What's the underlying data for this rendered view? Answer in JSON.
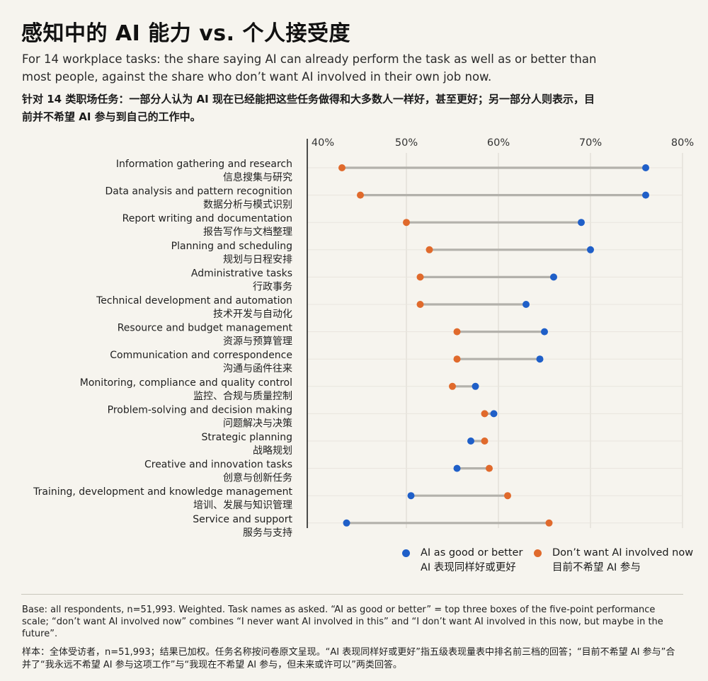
{
  "title": "感知中的 AI 能力 vs. 个人接受度",
  "subtitle": "For 14 workplace tasks: the share saying AI can already perform the task as well as or better than most people, against the share who don’t want AI involved in their own job now.",
  "subtitle_zh": "针对 14 类职场任务：一部分人认为 AI 现在已经能把这些任务做得和大多数人一样好，甚至更好；另一部分人则表示，目前并不希望 AI 参与到自己的工作中。",
  "legend": {
    "good": {
      "label_en": "AI as good or better",
      "label_zh": "AI 表现同样好或更好"
    },
    "dontwant": {
      "label_en": "Don’t want AI involved now",
      "label_zh": "目前不希望 AI 参与"
    }
  },
  "footnote_en": "Base: all respondents, n=51,993. Weighted. Task names as asked. “AI as good or better” = top three boxes of the five-point performance scale; “don’t want AI involved now” combines “I never want AI involved in this” and “I don’t want AI involved in this now, but maybe in the future”.",
  "footnote_zh": "样本：全体受访者，n=51,993；结果已加权。任务名称按问卷原文呈现。“AI 表现同样好或更好”指五级表现量表中排名前三档的回答；“目前不希望 AI 参与”合并了“我永远不希望 AI 参与这项工作”与“我现在不希望 AI 参与，但未来或许可以”两类回答。",
  "colors": {
    "good": "#1f5fc8",
    "dontwant": "#e06a2c",
    "connector": "#b3b1ab",
    "grid": "#d9d6cd",
    "axis": "#222222"
  },
  "chart_data": {
    "type": "dot-range",
    "xlim": [
      40,
      80
    ],
    "x_ticks": [
      40,
      50,
      60,
      70,
      80
    ],
    "x_tick_labels": [
      "40%",
      "50%",
      "60%",
      "70%",
      "80%"
    ],
    "categories": [
      {
        "en": "Information gathering and research",
        "zh": "信息搜集与研究"
      },
      {
        "en": "Data analysis and pattern recognition",
        "zh": "数据分析与模式识别"
      },
      {
        "en": "Report writing and documentation",
        "zh": "报告写作与文档整理"
      },
      {
        "en": "Planning and scheduling",
        "zh": "规划与日程安排"
      },
      {
        "en": "Administrative tasks",
        "zh": "行政事务"
      },
      {
        "en": "Technical development and automation",
        "zh": "技术开发与自动化"
      },
      {
        "en": "Resource and budget management",
        "zh": "资源与预算管理"
      },
      {
        "en": "Communication and correspondence",
        "zh": "沟通与函件往来"
      },
      {
        "en": "Monitoring, compliance and quality control",
        "zh": "监控、合规与质量控制"
      },
      {
        "en": "Problem-solving and decision making",
        "zh": "问题解决与决策"
      },
      {
        "en": "Strategic planning",
        "zh": "战略规划"
      },
      {
        "en": "Creative and innovation tasks",
        "zh": "创意与创新任务"
      },
      {
        "en": "Training, development and knowledge management",
        "zh": "培训、发展与知识管理"
      },
      {
        "en": "Service and support",
        "zh": "服务与支持"
      }
    ],
    "series": [
      {
        "name": "AI as good or better",
        "values": [
          76,
          76,
          69,
          70,
          66,
          63,
          65,
          64.5,
          57.5,
          59.5,
          57,
          55.5,
          50.5,
          43.5
        ]
      },
      {
        "name": "Don’t want AI involved now",
        "values": [
          43,
          45,
          50,
          52.5,
          51.5,
          51.5,
          55.5,
          55.5,
          55,
          58.5,
          58.5,
          59,
          61,
          65.5
        ]
      }
    ]
  }
}
